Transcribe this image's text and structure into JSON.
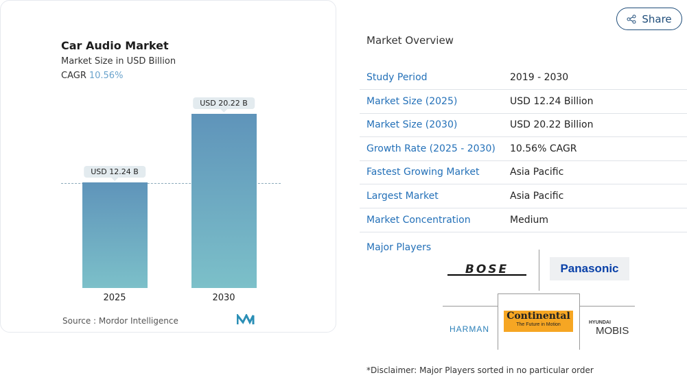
{
  "chart_card": {
    "title": "Car Audio Market",
    "subtitle": "Market Size in USD Billion",
    "cagr_label": "CAGR",
    "cagr_value": "10.56%",
    "source": "Source : Mordor Intelligence"
  },
  "chart_data": {
    "type": "bar",
    "categories": [
      "2025",
      "2030"
    ],
    "values": [
      12.24,
      20.22
    ],
    "data_labels": [
      "USD 12.24 B",
      "USD 20.22 B"
    ],
    "title": "Car Audio Market",
    "ylabel": "Market Size in USD Billion",
    "ylim": [
      0,
      21
    ],
    "colors": [
      "#5f94ba",
      "#7cc0c9"
    ]
  },
  "share_label": "Share",
  "overview": {
    "title": "Market Overview",
    "rows": [
      {
        "label": "Study Period",
        "value": "2019 - 2030"
      },
      {
        "label": "Market Size (2025)",
        "value": "USD 12.24 Billion"
      },
      {
        "label": "Market Size (2030)",
        "value": "USD 20.22 Billion"
      },
      {
        "label": "Growth Rate (2025 - 2030)",
        "value": "10.56% CAGR"
      },
      {
        "label": "Fastest Growing Market",
        "value": "Asia Pacific"
      },
      {
        "label": "Largest Market",
        "value": "Asia Pacific"
      },
      {
        "label": "Market Concentration",
        "value": "Medium"
      }
    ],
    "major_players_label": "Major Players",
    "players": [
      "BOSE",
      "Panasonic",
      "HARMAN",
      "Continental",
      "The Future in Motion",
      "HYUNDAI",
      "MOBIS"
    ],
    "disclaimer": "*Disclaimer: Major Players sorted in no particular order"
  }
}
